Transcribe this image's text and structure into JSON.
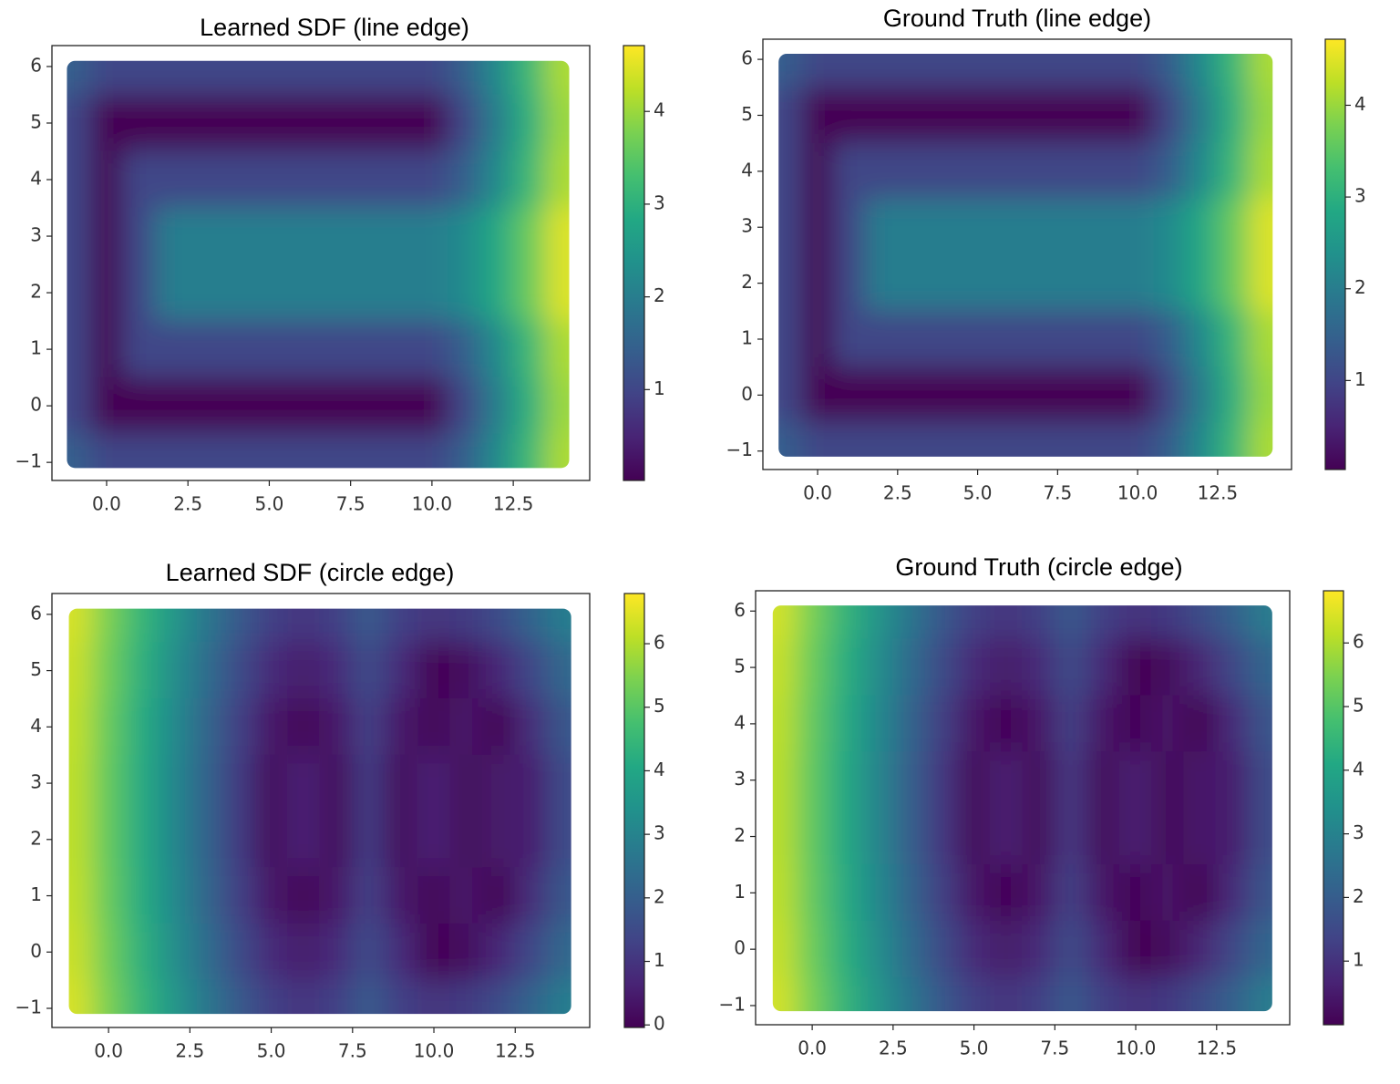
{
  "chart_data": [
    {
      "type": "heatmap",
      "title": "Learned SDF (line edge)",
      "colormap": "viridis",
      "x": [
        -1,
        0,
        1,
        2,
        3,
        4,
        5,
        6,
        7,
        8,
        9,
        10,
        11,
        12,
        13,
        14
      ],
      "y": [
        6,
        5,
        4,
        3,
        2,
        1,
        0,
        -1
      ],
      "z": [
        [
          1.41,
          1,
          1,
          1,
          1,
          1,
          1,
          1,
          1,
          1,
          1,
          1,
          1.41,
          2.24,
          3.16,
          4.12
        ],
        [
          1,
          0,
          0,
          0,
          0,
          0,
          0,
          0,
          0,
          0,
          0,
          0,
          1,
          2,
          3,
          4
        ],
        [
          1,
          0,
          1,
          1,
          1,
          1,
          1,
          1,
          1,
          1,
          1,
          1,
          1.41,
          2.24,
          3.16,
          4.12
        ],
        [
          1,
          0,
          1,
          2,
          2,
          2,
          2,
          2,
          2,
          2,
          2,
          2,
          2.24,
          2.83,
          3.61,
          4.47
        ],
        [
          1,
          0,
          1,
          2,
          2,
          2,
          2,
          2,
          2,
          2,
          2,
          2,
          2.24,
          2.83,
          3.61,
          4.47
        ],
        [
          1,
          0,
          1,
          1,
          1,
          1,
          1,
          1,
          1,
          1,
          1,
          1,
          1.41,
          2.24,
          3.16,
          4.12
        ],
        [
          1,
          0,
          0,
          0,
          0,
          0,
          0,
          0,
          0,
          0,
          0,
          0,
          1,
          2,
          3,
          4
        ],
        [
          1.41,
          1,
          1,
          1,
          1,
          1,
          1,
          1,
          1,
          1,
          1,
          1,
          1.41,
          2.24,
          3.16,
          4.12
        ]
      ],
      "xlim": [
        -1.68,
        14.85
      ],
      "ylim": [
        -1.32,
        6.37
      ],
      "xticks": [
        {
          "value": 0,
          "label": "0.0"
        },
        2.5,
        {
          "value": 5,
          "label": "5.0"
        },
        7.5,
        {
          "value": 10,
          "label": "10.0"
        },
        12.5
      ],
      "yticks": [
        {
          "value": -1,
          "label": "−1"
        },
        0,
        1,
        2,
        3,
        4,
        5,
        6
      ],
      "clim": [
        0.02,
        4.71
      ],
      "cticks": [
        1,
        2,
        3,
        4
      ]
    },
    {
      "type": "heatmap",
      "title": "Ground Truth (line edge)",
      "colormap": "viridis",
      "x": [
        -1,
        0,
        1,
        2,
        3,
        4,
        5,
        6,
        7,
        8,
        9,
        10,
        11,
        12,
        13,
        14
      ],
      "y": [
        6,
        5,
        4,
        3,
        2,
        1,
        0,
        -1
      ],
      "z": [
        [
          1.41,
          1,
          1,
          1,
          1,
          1,
          1,
          1,
          1,
          1,
          1,
          1,
          1.41,
          2.24,
          3.16,
          4.12
        ],
        [
          1,
          0,
          0,
          0,
          0,
          0,
          0,
          0,
          0,
          0,
          0,
          0,
          1,
          2,
          3,
          4
        ],
        [
          1,
          0,
          1,
          1,
          1,
          1,
          1,
          1,
          1,
          1,
          1,
          1,
          1.41,
          2.24,
          3.16,
          4.12
        ],
        [
          1,
          0,
          1,
          2,
          2,
          2,
          2,
          2,
          2,
          2,
          2,
          2,
          2.24,
          2.83,
          3.61,
          4.47
        ],
        [
          1,
          0,
          1,
          2,
          2,
          2,
          2,
          2,
          2,
          2,
          2,
          2,
          2.24,
          2.83,
          3.61,
          4.47
        ],
        [
          1,
          0,
          1,
          1,
          1,
          1,
          1,
          1,
          1,
          1,
          1,
          1,
          1.41,
          2.24,
          3.16,
          4.12
        ],
        [
          1,
          0,
          0,
          0,
          0,
          0,
          0,
          0,
          0,
          0,
          0,
          0,
          1,
          2,
          3,
          4
        ],
        [
          1.41,
          1,
          1,
          1,
          1,
          1,
          1,
          1,
          1,
          1,
          1,
          1,
          1.41,
          2.24,
          3.16,
          4.12
        ]
      ],
      "xlim": [
        -1.71,
        14.81
      ],
      "ylim": [
        -1.33,
        6.36
      ],
      "xticks": [
        {
          "value": 0,
          "label": "0.0"
        },
        2.5,
        {
          "value": 5,
          "label": "5.0"
        },
        7.5,
        {
          "value": 10,
          "label": "10.0"
        },
        12.5
      ],
      "yticks": [
        {
          "value": -1,
          "label": "−1"
        },
        0,
        1,
        2,
        3,
        4,
        5,
        6
      ],
      "clim": [
        0.03,
        4.72
      ],
      "cticks": [
        1,
        2,
        3,
        4
      ]
    },
    {
      "type": "heatmap",
      "title": "Learned SDF (circle edge)",
      "colormap": "viridis",
      "x": [
        -1,
        0,
        1,
        2,
        3,
        4,
        5,
        6,
        7,
        8,
        9,
        10,
        11,
        12,
        13,
        14
      ],
      "y": [
        6,
        5,
        4,
        3,
        2,
        1,
        0,
        -1
      ],
      "z": [
        [
          6.36,
          5.4,
          4.46,
          3.54,
          2.66,
          1.88,
          1.27,
          1.03,
          1.27,
          1.88,
          1.27,
          1.0,
          1.14,
          1.53,
          2.11,
          2.82
        ],
        [
          6.23,
          5.26,
          4.29,
          3.33,
          2.4,
          1.53,
          0.8,
          0.48,
          0.8,
          1.53,
          0.8,
          0,
          0.19,
          0.7,
          1.41,
          2.22
        ],
        [
          6.15,
          5.16,
          4.17,
          3.18,
          2.21,
          1.26,
          0.4,
          0.08,
          0.4,
          1.26,
          0.4,
          0.08,
          0.4,
          0,
          0.85,
          1.77
        ],
        [
          6.11,
          5.11,
          4.11,
          3.11,
          2.11,
          1.12,
          0.14,
          0.63,
          0.14,
          1.12,
          0.14,
          0.63,
          0.14,
          0.44,
          0.54,
          1.53
        ],
        [
          6.11,
          5.11,
          4.11,
          3.11,
          2.11,
          1.12,
          0.14,
          0.63,
          0.14,
          1.12,
          0.14,
          0.63,
          0.14,
          0.44,
          0.54,
          1.53
        ],
        [
          6.15,
          5.16,
          4.17,
          3.18,
          2.21,
          1.26,
          0.4,
          0.08,
          0.4,
          1.26,
          0.4,
          0.08,
          0.4,
          0,
          0.85,
          1.77
        ],
        [
          6.23,
          5.26,
          4.29,
          3.33,
          2.4,
          1.53,
          0.8,
          0.48,
          0.8,
          1.53,
          0.8,
          0,
          0.19,
          0.7,
          1.41,
          2.22
        ],
        [
          6.36,
          5.4,
          4.46,
          3.54,
          2.66,
          1.88,
          1.27,
          1.03,
          1.27,
          1.88,
          1.27,
          1.0,
          1.14,
          1.53,
          2.11,
          2.82
        ]
      ],
      "xlim": [
        -1.74,
        14.79
      ],
      "ylim": [
        -1.34,
        6.37
      ],
      "xticks": [
        {
          "value": 0,
          "label": "0.0"
        },
        2.5,
        {
          "value": 5,
          "label": "5.0"
        },
        7.5,
        {
          "value": 10,
          "label": "10.0"
        },
        12.5
      ],
      "yticks": [
        {
          "value": -1,
          "label": "−1"
        },
        0,
        1,
        2,
        3,
        4,
        5,
        6
      ],
      "clim": [
        -0.04,
        6.79
      ],
      "cticks": [
        0,
        1,
        2,
        3,
        4,
        5,
        6
      ]
    },
    {
      "type": "heatmap",
      "title": "Ground Truth (circle edge)",
      "colormap": "viridis",
      "x": [
        -1,
        0,
        1,
        2,
        3,
        4,
        5,
        6,
        7,
        8,
        9,
        10,
        11,
        12,
        13,
        14
      ],
      "y": [
        6,
        5,
        4,
        3,
        2,
        1,
        0,
        -1
      ],
      "z": [
        [
          6.36,
          5.4,
          4.46,
          3.54,
          2.66,
          1.88,
          1.27,
          1.03,
          1.27,
          1.88,
          1.27,
          1.0,
          1.14,
          1.53,
          2.11,
          2.82
        ],
        [
          6.23,
          5.26,
          4.29,
          3.33,
          2.4,
          1.53,
          0.8,
          0.48,
          0.8,
          1.53,
          0.8,
          0,
          0.19,
          0.7,
          1.41,
          2.22
        ],
        [
          6.15,
          5.16,
          4.17,
          3.18,
          2.21,
          1.26,
          0.4,
          0.08,
          0.4,
          1.26,
          0.4,
          0.08,
          0.4,
          0,
          0.85,
          1.77
        ],
        [
          6.11,
          5.11,
          4.11,
          3.11,
          2.11,
          1.12,
          0.14,
          0.63,
          0.14,
          1.12,
          0.14,
          0.63,
          0.14,
          0.44,
          0.54,
          1.53
        ],
        [
          6.11,
          5.11,
          4.11,
          3.11,
          2.11,
          1.12,
          0.14,
          0.63,
          0.14,
          1.12,
          0.14,
          0.63,
          0.14,
          0.44,
          0.54,
          1.53
        ],
        [
          6.15,
          5.16,
          4.17,
          3.18,
          2.21,
          1.26,
          0.4,
          0.08,
          0.4,
          1.26,
          0.4,
          0.08,
          0.4,
          0,
          0.85,
          1.77
        ],
        [
          6.23,
          5.26,
          4.29,
          3.33,
          2.4,
          1.53,
          0.8,
          0.48,
          0.8,
          1.53,
          0.8,
          0,
          0.19,
          0.7,
          1.41,
          2.22
        ],
        [
          6.36,
          5.4,
          4.46,
          3.54,
          2.66,
          1.88,
          1.27,
          1.03,
          1.27,
          1.88,
          1.27,
          1.0,
          1.14,
          1.53,
          2.11,
          2.82
        ]
      ],
      "xlim": [
        -1.75,
        14.76
      ],
      "ylim": [
        -1.34,
        6.36
      ],
      "xticks": [
        {
          "value": 0,
          "label": "0.0"
        },
        2.5,
        {
          "value": 5,
          "label": "5.0"
        },
        7.5,
        {
          "value": 10,
          "label": "10.0"
        },
        12.5
      ],
      "yticks": [
        {
          "value": -1,
          "label": "−1"
        },
        0,
        1,
        2,
        3,
        4,
        5,
        6
      ],
      "clim": [
        0.0,
        6.82
      ],
      "cticks": [
        1,
        2,
        3,
        4,
        5,
        6
      ]
    }
  ]
}
